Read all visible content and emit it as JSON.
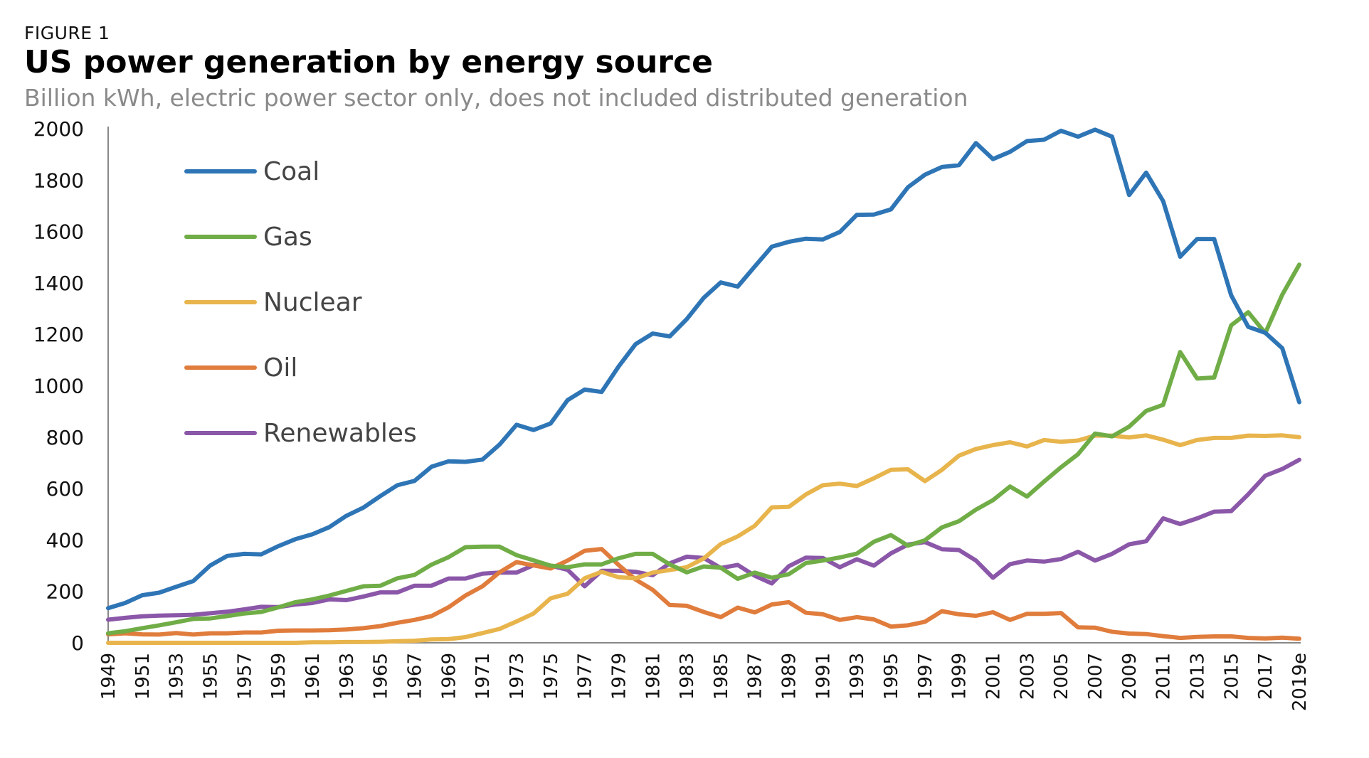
{
  "figure_label": "FIGURE 1",
  "title": "US power generation by energy source",
  "subtitle": "Billion kWh, electric power sector only, does not included distributed generation",
  "chart_data": {
    "type": "line",
    "x": [
      "1949",
      "1950",
      "1951",
      "1952",
      "1953",
      "1954",
      "1955",
      "1956",
      "1957",
      "1958",
      "1959",
      "1960",
      "1961",
      "1962",
      "1963",
      "1964",
      "1965",
      "1966",
      "1967",
      "1968",
      "1969",
      "1970",
      "1971",
      "1972",
      "1973",
      "1974",
      "1975",
      "1976",
      "1977",
      "1978",
      "1979",
      "1980",
      "1981",
      "1982",
      "1983",
      "1984",
      "1985",
      "1986",
      "1987",
      "1988",
      "1989",
      "1990",
      "1991",
      "1992",
      "1993",
      "1994",
      "1995",
      "1996",
      "1997",
      "1998",
      "1999",
      "2000",
      "2001",
      "2002",
      "2003",
      "2004",
      "2005",
      "2006",
      "2007",
      "2008",
      "2009",
      "2010",
      "2011",
      "2012",
      "2013",
      "2014",
      "2015",
      "2016",
      "2017",
      "2018",
      "2019e"
    ],
    "x_tick_labels": [
      "1949",
      "1951",
      "1953",
      "1955",
      "1957",
      "1959",
      "1961",
      "1963",
      "1965",
      "1967",
      "1969",
      "1971",
      "1973",
      "1975",
      "1977",
      "1979",
      "1981",
      "1983",
      "1985",
      "1987",
      "1989",
      "1991",
      "1993",
      "1995",
      "1997",
      "1999",
      "2001",
      "2003",
      "2005",
      "2007",
      "2009",
      "2011",
      "2013",
      "2015",
      "2017",
      "2019e"
    ],
    "ylim": [
      0,
      2000
    ],
    "y_ticks": [
      0,
      200,
      400,
      600,
      800,
      1000,
      1200,
      1400,
      1600,
      1800,
      2000
    ],
    "legend_position": "top-left",
    "grid": false,
    "series": [
      {
        "name": "Coal",
        "color": "#2E75B6",
        "values": [
          135,
          155,
          185,
          195,
          218,
          240,
          301,
          338,
          346,
          344,
          376,
          403,
          422,
          450,
          494,
          526,
          571,
          613,
          630,
          685,
          706,
          704,
          713,
          771,
          848,
          828,
          853,
          944,
          985,
          976,
          1075,
          1162,
          1203,
          1192,
          1259,
          1342,
          1402,
          1386,
          1464,
          1541,
          1560,
          1572,
          1569,
          1598,
          1665,
          1666,
          1686,
          1772,
          1821,
          1851,
          1858,
          1944,
          1882,
          1910,
          1952,
          1957,
          1992,
          1969,
          1996,
          1969,
          1742,
          1829,
          1718,
          1502,
          1571,
          1571,
          1352,
          1229,
          1206,
          1146,
          936
        ]
      },
      {
        "name": "Gas",
        "color": "#70AD47",
        "values": [
          37,
          45,
          57,
          68,
          80,
          93,
          95,
          104,
          114,
          120,
          138,
          158,
          169,
          184,
          202,
          220,
          222,
          251,
          264,
          304,
          333,
          372,
          374,
          374,
          341,
          321,
          300,
          294,
          305,
          305,
          329,
          346,
          346,
          305,
          274,
          297,
          292,
          249,
          273,
          253,
          267,
          310,
          320,
          332,
          347,
          393,
          419,
          378,
          399,
          449,
          473,
          518,
          555,
          608,
          569,
          627,
          683,
          734,
          814,
          803,
          841,
          902,
          926,
          1131,
          1028,
          1032,
          1235,
          1286,
          1205,
          1354,
          1471
        ]
      },
      {
        "name": "Nuclear",
        "color": "#E8B44C",
        "values": [
          0,
          0,
          0,
          0,
          0,
          0,
          0,
          0,
          0,
          0,
          0,
          0,
          2,
          2,
          3,
          3,
          4,
          6,
          8,
          13,
          14,
          22,
          38,
          54,
          83,
          114,
          173,
          191,
          251,
          276,
          255,
          251,
          273,
          283,
          294,
          328,
          384,
          414,
          455,
          527,
          529,
          577,
          613,
          619,
          610,
          640,
          673,
          675,
          629,
          673,
          728,
          754,
          769,
          780,
          764,
          789,
          782,
          787,
          806,
          806,
          799,
          807,
          790,
          769,
          789,
          797,
          797,
          806,
          805,
          807,
          800
        ]
      },
      {
        "name": "Oil",
        "color": "#E07C3C",
        "values": [
          33,
          37,
          33,
          32,
          38,
          32,
          37,
          37,
          40,
          40,
          47,
          48,
          48,
          49,
          52,
          57,
          65,
          78,
          89,
          104,
          138,
          184,
          220,
          274,
          314,
          301,
          289,
          320,
          358,
          365,
          303,
          246,
          206,
          147,
          144,
          120,
          100,
          137,
          118,
          149,
          158,
          117,
          111,
          89,
          100,
          91,
          63,
          68,
          82,
          123,
          111,
          105,
          119,
          89,
          113,
          113,
          116,
          60,
          59,
          43,
          36,
          34,
          26,
          19,
          23,
          25,
          25,
          19,
          17,
          20,
          16
        ]
      },
      {
        "name": "Renewables",
        "color": "#8B57A8",
        "values": [
          90,
          97,
          103,
          106,
          107,
          109,
          115,
          121,
          130,
          140,
          139,
          149,
          155,
          169,
          166,
          180,
          196,
          196,
          222,
          222,
          250,
          250,
          269,
          273,
          273,
          302,
          300,
          284,
          220,
          280,
          280,
          276,
          263,
          309,
          335,
          330,
          291,
          303,
          261,
          231,
          298,
          331,
          330,
          294,
          325,
          300,
          348,
          382,
          392,
          364,
          361,
          320,
          253,
          306,
          320,
          316,
          326,
          354,
          320,
          346,
          383,
          395,
          484,
          462,
          484,
          510,
          512,
          578,
          650,
          676,
          712
        ]
      }
    ]
  }
}
